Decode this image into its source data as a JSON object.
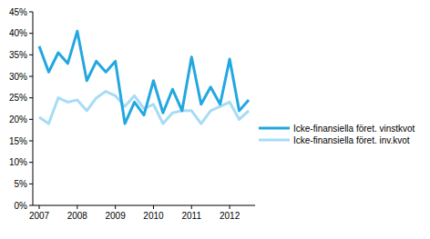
{
  "chart_data": {
    "type": "line",
    "categories": [
      "2007",
      null,
      null,
      null,
      "2008",
      null,
      null,
      null,
      "2009",
      null,
      null,
      null,
      "2010",
      null,
      null,
      null,
      "2011",
      null,
      null,
      null,
      "2012",
      null,
      null
    ],
    "series": [
      {
        "name": "Icke-finansiella föret. vinstkvot",
        "color": "#22a7e0",
        "values": [
          37,
          31,
          35.5,
          33,
          40.5,
          29,
          33.5,
          31,
          33.5,
          19,
          24,
          21,
          29,
          21.5,
          27,
          22,
          34.5,
          23.5,
          27.5,
          23.5,
          34,
          22,
          24.5
        ]
      },
      {
        "name": "Icke-finansiella föret. inv.kvot",
        "color": "#a6dcf5",
        "values": [
          20.5,
          19,
          25,
          24,
          24.5,
          22,
          25,
          26.5,
          25.5,
          23,
          25.5,
          22.5,
          23.5,
          19,
          21.5,
          22,
          22,
          19,
          22,
          23,
          24,
          20,
          22
        ]
      }
    ],
    "ylim": [
      0,
      45
    ],
    "yticks": [
      {
        "value": 0,
        "label": "0%"
      },
      {
        "value": 5,
        "label": "5%"
      },
      {
        "value": 10,
        "label": "10%"
      },
      {
        "value": 15,
        "label": "15%"
      },
      {
        "value": 20,
        "label": "20%"
      },
      {
        "value": 25,
        "label": "25%"
      },
      {
        "value": 30,
        "label": "30%"
      },
      {
        "value": 35,
        "label": "35%"
      },
      {
        "value": 40,
        "label": "40%"
      },
      {
        "value": 45,
        "label": "45%"
      }
    ],
    "grid": false,
    "legend": "right"
  }
}
